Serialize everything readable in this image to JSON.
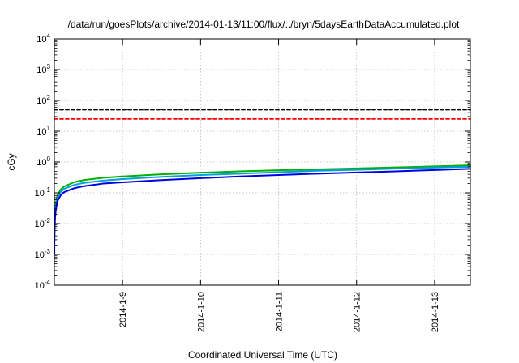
{
  "chart_data": {
    "type": "line",
    "title": "/data/run/goesPlots/archive/2014-01-13/11:00/flux/../bryn/5daysEarthDataAccumulated.plot",
    "xlabel": "Coordinated Universal Time (UTC)",
    "ylabel": "cGy",
    "y_scale": "log",
    "ylim": [
      0.0001,
      10000
    ],
    "y_ticks": [
      {
        "value": 0.0001,
        "base": "10",
        "exp": "-4"
      },
      {
        "value": 0.001,
        "base": "10",
        "exp": "-3"
      },
      {
        "value": 0.01,
        "base": "10",
        "exp": "-2"
      },
      {
        "value": 0.1,
        "base": "10",
        "exp": "-1"
      },
      {
        "value": 1,
        "base": "10",
        "exp": "0"
      },
      {
        "value": 10,
        "base": "10",
        "exp": "1"
      },
      {
        "value": 100,
        "base": "10",
        "exp": "2"
      },
      {
        "value": 1000,
        "base": "10",
        "exp": "3"
      },
      {
        "value": 10000,
        "base": "10",
        "exp": "4"
      }
    ],
    "xlim": [
      "2014-01-08T03:00",
      "2014-01-13T11:00"
    ],
    "x_ticks": [
      {
        "value": "2014-01-09T00:00",
        "label": "2014-1-9"
      },
      {
        "value": "2014-01-10T00:00",
        "label": "2014-1-10"
      },
      {
        "value": "2014-01-11T00:00",
        "label": "2014-1-11"
      },
      {
        "value": "2014-01-12T00:00",
        "label": "2014-1-12"
      },
      {
        "value": "2014-01-13T00:00",
        "label": "2014-1-13"
      }
    ],
    "grid": true,
    "series": [
      {
        "color": "#000000",
        "style": "dashed",
        "x": [
          "2014-01-08T03:00",
          "2014-01-13T11:00"
        ],
        "y": [
          50,
          50
        ]
      },
      {
        "color": "#ff0000",
        "style": "dashed",
        "x": [
          "2014-01-08T03:00",
          "2014-01-13T11:00"
        ],
        "y": [
          25,
          25
        ]
      },
      {
        "color": "#00b000",
        "style": "solid",
        "x": [
          "2014-01-08T03:00",
          "2014-01-08T03:01",
          "2014-01-08T03:05",
          "2014-01-08T03:15",
          "2014-01-08T03:30",
          "2014-01-08T04:00",
          "2014-01-08T05:00",
          "2014-01-08T06:00",
          "2014-01-08T09:00",
          "2014-01-08T12:00",
          "2014-01-08T18:00",
          "2014-01-09T00:00",
          "2014-01-09T12:00",
          "2014-01-10T00:00",
          "2014-01-10T12:00",
          "2014-01-11T00:00",
          "2014-01-11T12:00",
          "2014-01-12T00:00",
          "2014-01-12T12:00",
          "2014-01-13T00:00",
          "2014-01-13T11:00"
        ],
        "y": [
          0.0015,
          0.004,
          0.012,
          0.028,
          0.05,
          0.085,
          0.13,
          0.16,
          0.22,
          0.26,
          0.31,
          0.34,
          0.4,
          0.45,
          0.5,
          0.54,
          0.58,
          0.62,
          0.67,
          0.72,
          0.78
        ]
      },
      {
        "color": "#00a0e0",
        "style": "solid",
        "x": [
          "2014-01-08T03:00",
          "2014-01-08T03:01",
          "2014-01-08T03:05",
          "2014-01-08T03:15",
          "2014-01-08T03:30",
          "2014-01-08T04:00",
          "2014-01-08T05:00",
          "2014-01-08T06:00",
          "2014-01-08T09:00",
          "2014-01-08T12:00",
          "2014-01-08T18:00",
          "2014-01-09T00:00",
          "2014-01-09T12:00",
          "2014-01-10T00:00",
          "2014-01-10T12:00",
          "2014-01-11T00:00",
          "2014-01-11T12:00",
          "2014-01-12T00:00",
          "2014-01-12T12:00",
          "2014-01-13T00:00",
          "2014-01-13T11:00"
        ],
        "y": [
          0.0012,
          0.003,
          0.009,
          0.022,
          0.04,
          0.07,
          0.11,
          0.135,
          0.18,
          0.21,
          0.25,
          0.28,
          0.33,
          0.38,
          0.42,
          0.47,
          0.52,
          0.56,
          0.61,
          0.66,
          0.7
        ]
      },
      {
        "color": "#0000e0",
        "style": "solid",
        "x": [
          "2014-01-08T03:00",
          "2014-01-08T03:01",
          "2014-01-08T03:05",
          "2014-01-08T03:15",
          "2014-01-08T03:30",
          "2014-01-08T04:00",
          "2014-01-08T05:00",
          "2014-01-08T06:00",
          "2014-01-08T09:00",
          "2014-01-08T12:00",
          "2014-01-08T18:00",
          "2014-01-09T00:00",
          "2014-01-09T12:00",
          "2014-01-10T00:00",
          "2014-01-10T12:00",
          "2014-01-11T00:00",
          "2014-01-11T12:00",
          "2014-01-12T00:00",
          "2014-01-12T12:00",
          "2014-01-13T00:00",
          "2014-01-13T11:00"
        ],
        "y": [
          0.001,
          0.0025,
          0.007,
          0.017,
          0.03,
          0.055,
          0.085,
          0.105,
          0.14,
          0.165,
          0.2,
          0.22,
          0.26,
          0.3,
          0.34,
          0.38,
          0.42,
          0.46,
          0.5,
          0.55,
          0.6
        ]
      }
    ]
  }
}
